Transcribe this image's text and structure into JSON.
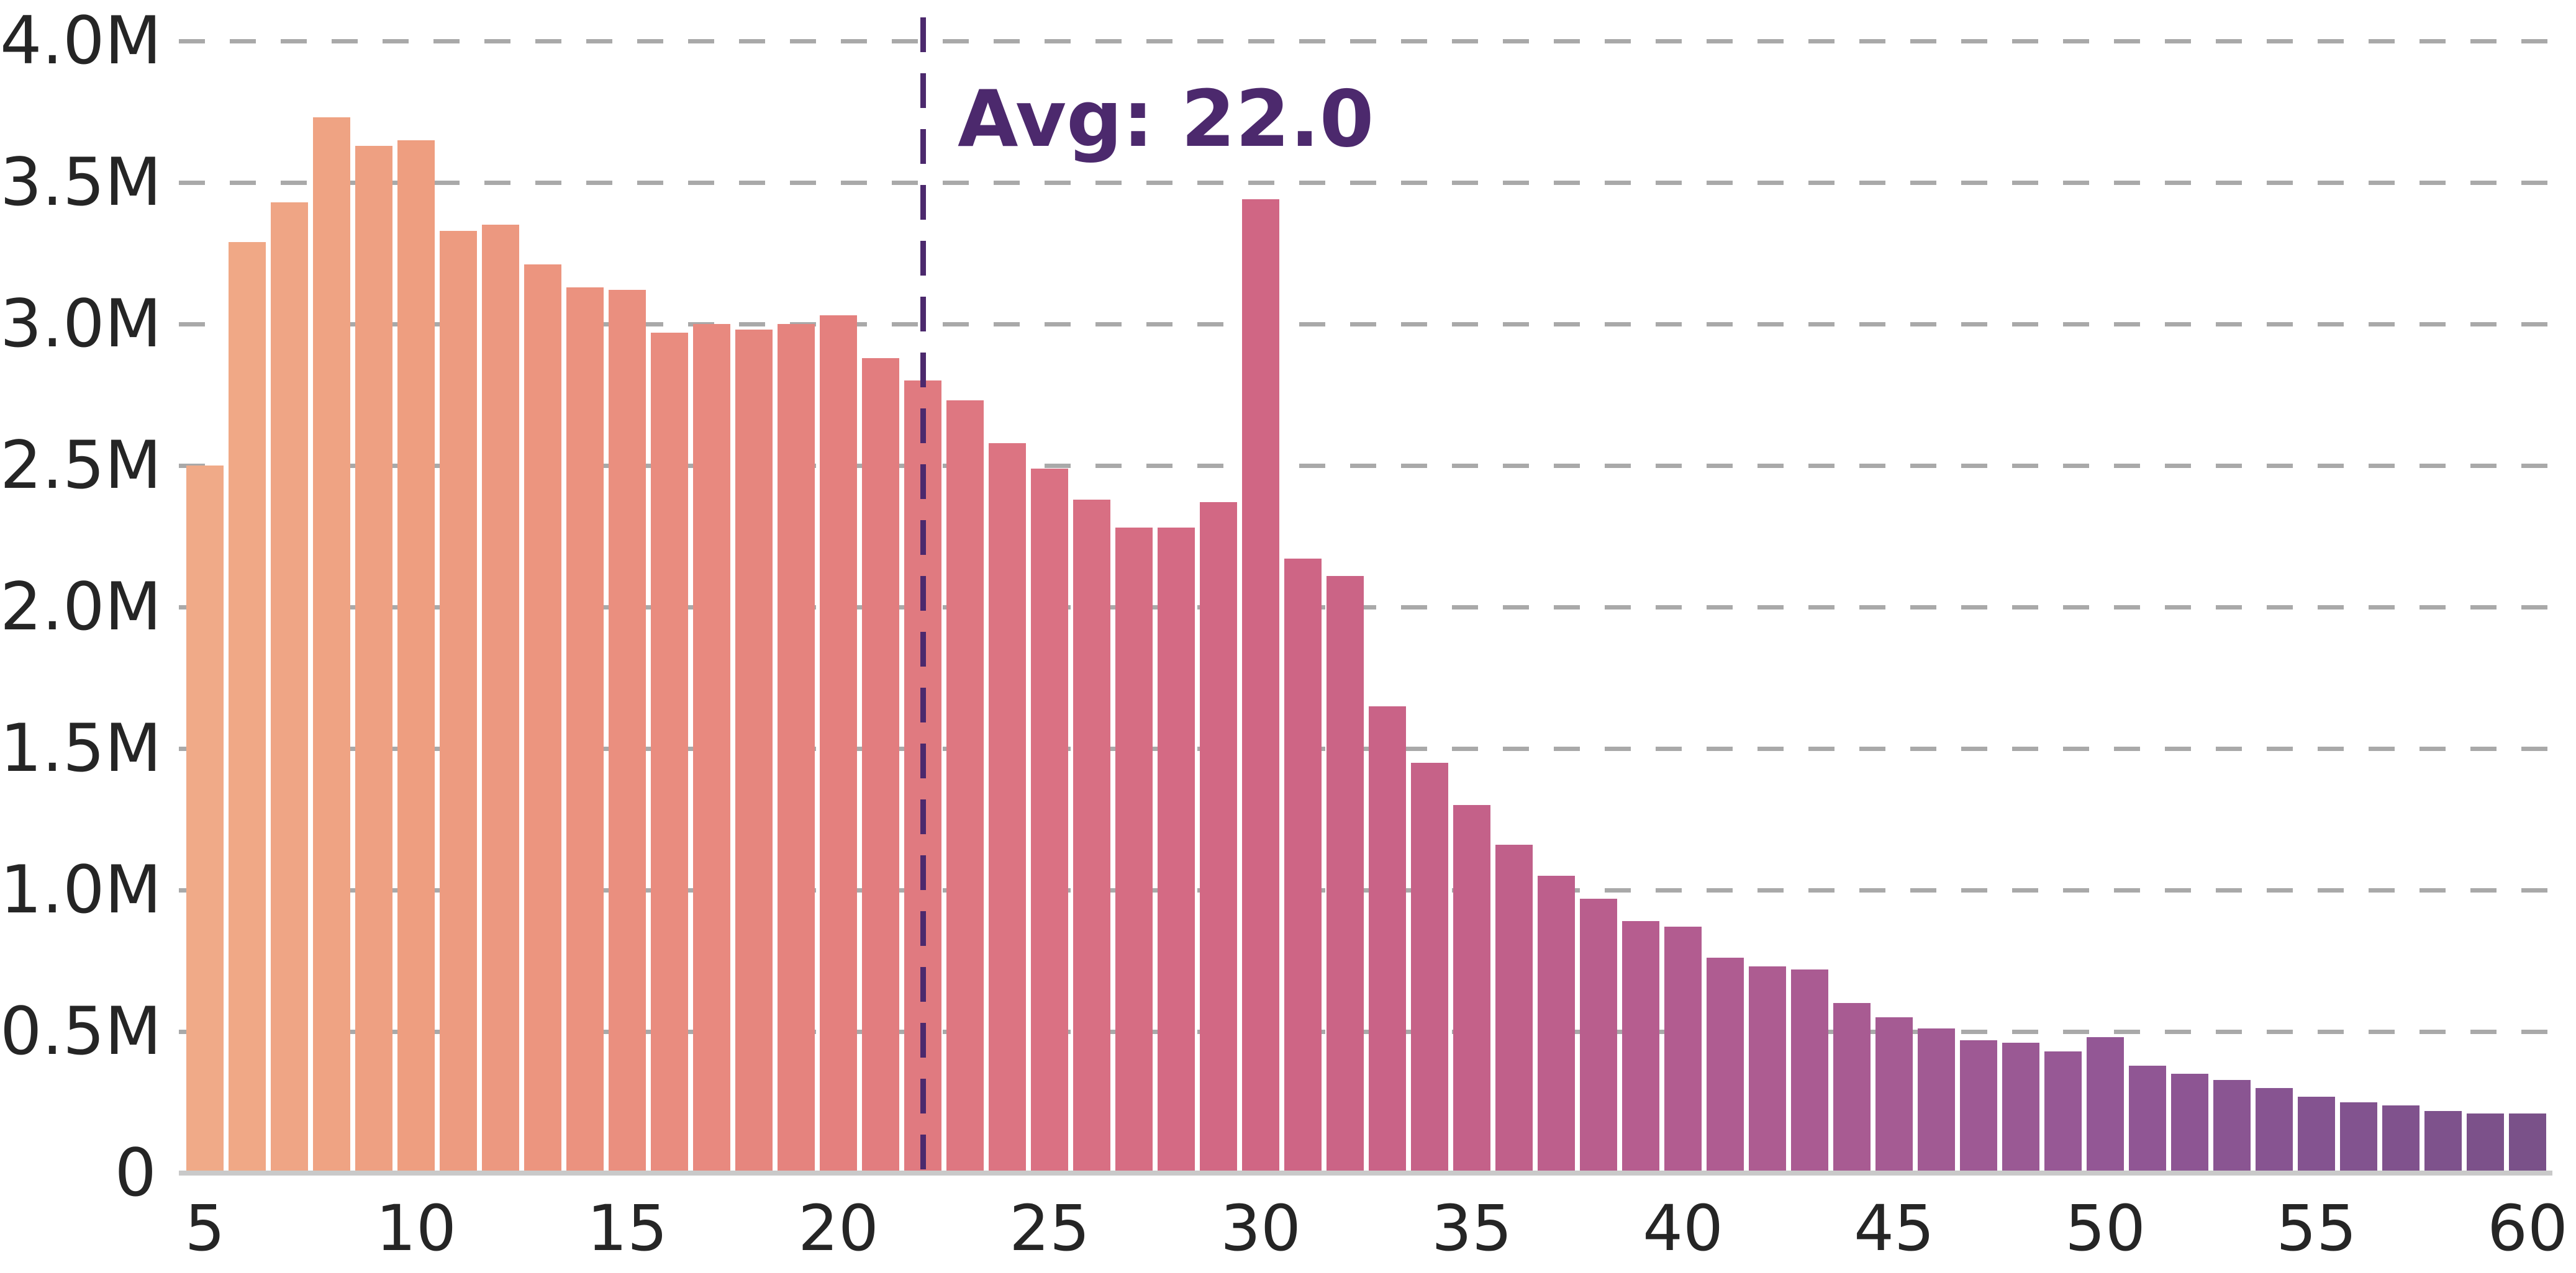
{
  "chart_data": {
    "type": "bar",
    "title": "",
    "xlabel": "",
    "ylabel": "",
    "x": [
      5,
      6,
      7,
      8,
      9,
      10,
      11,
      12,
      13,
      14,
      15,
      16,
      17,
      18,
      19,
      20,
      21,
      22,
      23,
      24,
      25,
      26,
      27,
      28,
      29,
      30,
      31,
      32,
      33,
      34,
      35,
      36,
      37,
      38,
      39,
      40,
      41,
      42,
      43,
      44,
      45,
      46,
      47,
      48,
      49,
      50,
      51,
      52,
      53,
      54,
      55,
      56,
      57,
      58,
      59,
      60
    ],
    "values_millions": [
      2.5,
      3.29,
      3.43,
      3.73,
      3.63,
      3.65,
      3.33,
      3.35,
      3.21,
      3.13,
      3.12,
      2.97,
      3.0,
      2.98,
      3.0,
      3.03,
      2.88,
      2.8,
      2.73,
      2.58,
      2.49,
      2.38,
      2.28,
      2.28,
      2.37,
      3.44,
      2.17,
      2.11,
      1.65,
      1.45,
      1.3,
      1.16,
      1.05,
      0.97,
      0.89,
      0.87,
      0.76,
      0.73,
      0.72,
      0.6,
      0.55,
      0.51,
      0.47,
      0.46,
      0.43,
      0.48,
      0.38,
      0.35,
      0.33,
      0.3,
      0.27,
      0.25,
      0.24,
      0.22,
      0.21,
      0.21
    ],
    "unit": "M",
    "ylim": [
      0,
      4.0
    ],
    "ytick_step_millions": 0.5,
    "ytick_labels": [
      "0",
      "0.5M",
      "1.0M",
      "1.5M",
      "2.0M",
      "2.5M",
      "3.0M",
      "3.5M",
      "4.0M"
    ],
    "xtick_labels": [
      "5",
      "10",
      "15",
      "20",
      "25",
      "30",
      "35",
      "40",
      "45",
      "50",
      "55",
      "60"
    ],
    "grid": "horizontal-dashed",
    "legend": "none",
    "annotation": {
      "label": "Avg: 22.0",
      "value": 22.0
    },
    "bar_color_gradient": [
      {
        "age": 5,
        "color": "#f0aa88"
      },
      {
        "age": 10,
        "color": "#ee9e80"
      },
      {
        "age": 15,
        "color": "#ea8f7f"
      },
      {
        "age": 20,
        "color": "#e4807e"
      },
      {
        "age": 25,
        "color": "#da7183"
      },
      {
        "age": 30,
        "color": "#d06684"
      },
      {
        "age": 35,
        "color": "#c46189"
      },
      {
        "age": 40,
        "color": "#b25c90"
      },
      {
        "age": 45,
        "color": "#a55b93"
      },
      {
        "age": 50,
        "color": "#935795"
      },
      {
        "age": 55,
        "color": "#845390"
      },
      {
        "age": 60,
        "color": "#7a5189"
      }
    ]
  },
  "colors": {
    "background": "#ffffff",
    "tick_label": "#252525",
    "gridline": "#a9a9a9",
    "axis_line": "#c9c9c9",
    "average": "#4c296d"
  }
}
